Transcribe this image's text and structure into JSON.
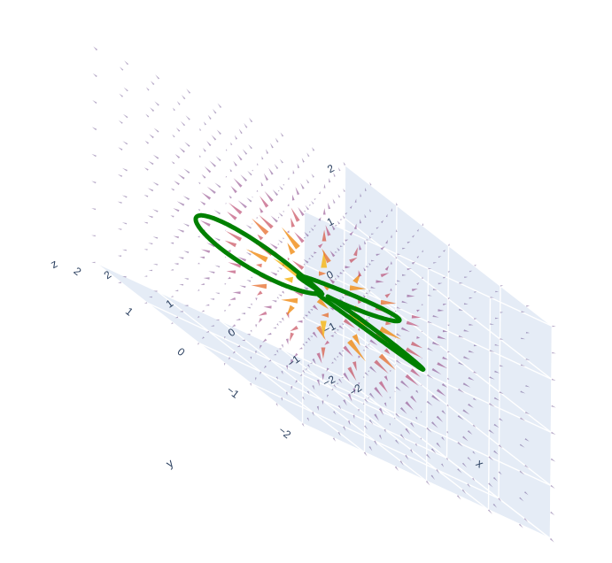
{
  "chart_data": {
    "type": "cone-3d",
    "description_of_marks": "3D vector field (cones) with a green closed curve",
    "axes": {
      "x": {
        "title": "x",
        "ticks": [
          "−2",
          "−1",
          "0",
          "1",
          "2"
        ],
        "range": [
          -2,
          2
        ]
      },
      "y": {
        "title": "y",
        "ticks": [
          "−2",
          "−1",
          "0",
          "1",
          "2"
        ],
        "range": [
          -2,
          2
        ]
      },
      "z": {
        "title": "z",
        "ticks": [
          "−2",
          "−1",
          "0",
          "1",
          "2"
        ],
        "range": [
          -2,
          2
        ]
      }
    },
    "grid": true,
    "curve": {
      "shape": "three-lobed closed loop (trefoil-like)",
      "lobes": 3
    },
    "colorscale": [
      "#2d0a5e",
      "#6a1a6f",
      "#b12a59",
      "#e0542c",
      "#f08a12",
      "#f7c52b"
    ]
  },
  "colors": {
    "background": "#ffffff",
    "pane": "#e5ecf6",
    "grid": "#ffffff",
    "curve": "#008000",
    "text": "#2a3f5f"
  }
}
